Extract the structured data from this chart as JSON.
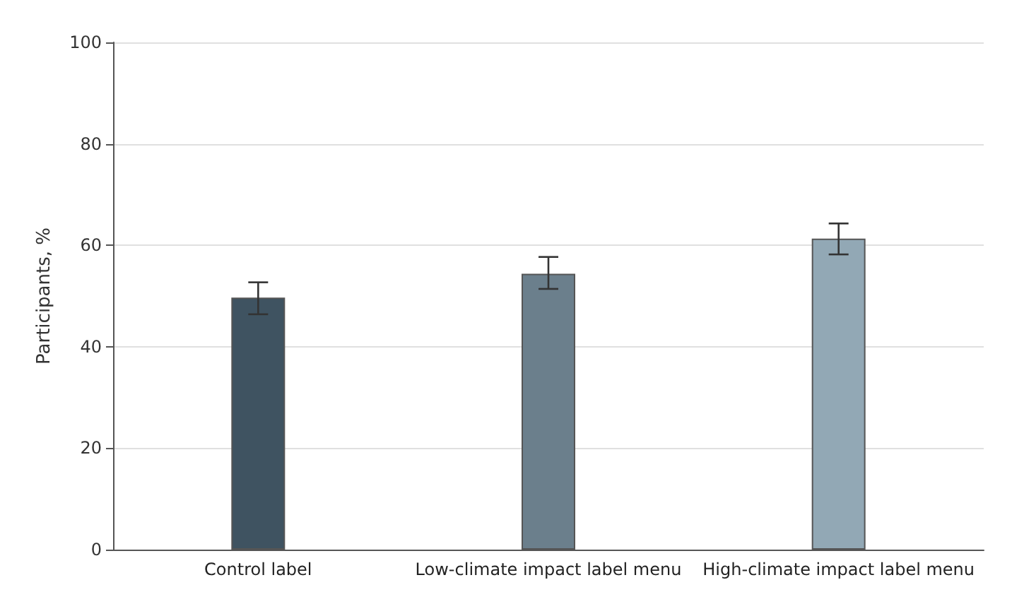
{
  "chart_data": {
    "type": "bar",
    "ylabel": "Participants, %",
    "categories": [
      "Control label",
      "Low-climate impact label menu",
      "High-climate impact label menu"
    ],
    "values": [
      49.7,
      54.4,
      61.3
    ],
    "colors": [
      "#3f5361",
      "#6b7f8c",
      "#92a8b5"
    ],
    "errors": [
      [
        46.4,
        52.7
      ],
      [
        51.4,
        57.7
      ],
      [
        58.2,
        64.3
      ]
    ],
    "ylim": [
      0,
      100
    ],
    "yticks": [
      0,
      20,
      40,
      60,
      80,
      100
    ],
    "grid": "y"
  }
}
